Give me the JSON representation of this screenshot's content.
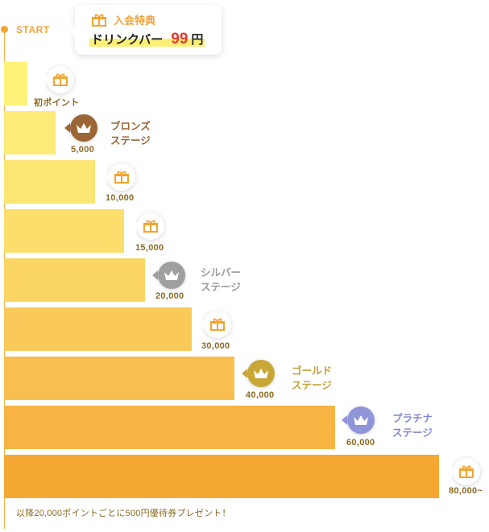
{
  "start": {
    "label": "START"
  },
  "welcome": {
    "title": "入会特典",
    "text": "ドリンクバー",
    "number": "99",
    "unit": "円"
  },
  "tiers": [
    {
      "kind": "gift",
      "amount": "初ポイント",
      "color": "#fdf27a",
      "icon": "gift-icon"
    },
    {
      "kind": "crown",
      "amount": "5,000",
      "stage": [
        "ブロンズ",
        "ステージ"
      ],
      "color": "#fcea79",
      "badge_color": "#9b6635",
      "stage_color": "#9b6635",
      "icon": "crown-icon"
    },
    {
      "kind": "gift",
      "amount": "10,000",
      "color": "#fce673",
      "icon": "gift-icon"
    },
    {
      "kind": "gift",
      "amount": "15,000",
      "color": "#fbde6c",
      "icon": "gift-icon"
    },
    {
      "kind": "crown",
      "amount": "20,000",
      "stage": [
        "シルバー",
        "ステージ"
      ],
      "color": "#fad564",
      "badge_color": "#9f9f9f",
      "stage_color": "#9a9a9a",
      "icon": "crown-icon"
    },
    {
      "kind": "gift",
      "amount": "30,000",
      "color": "#f9ca5a",
      "icon": "gift-icon"
    },
    {
      "kind": "crown",
      "amount": "40,000",
      "stage": [
        "ゴールド",
        "ステージ"
      ],
      "color": "#f8bf4f",
      "badge_color": "#c9a737",
      "stage_color": "#c4a036",
      "icon": "crown-icon"
    },
    {
      "kind": "crown",
      "amount": "60,000",
      "stage": [
        "プラチナ",
        "ステージ"
      ],
      "color": "#f7b442",
      "badge_color": "#8f95d8",
      "stage_color": "#8088cf",
      "icon": "crown-icon"
    },
    {
      "kind": "gift",
      "amount": "80,000~",
      "color": "#f5a733",
      "icon": "gift-icon"
    }
  ],
  "footer": "以降20,000ポイントごとに500円優待券プレゼント！"
}
